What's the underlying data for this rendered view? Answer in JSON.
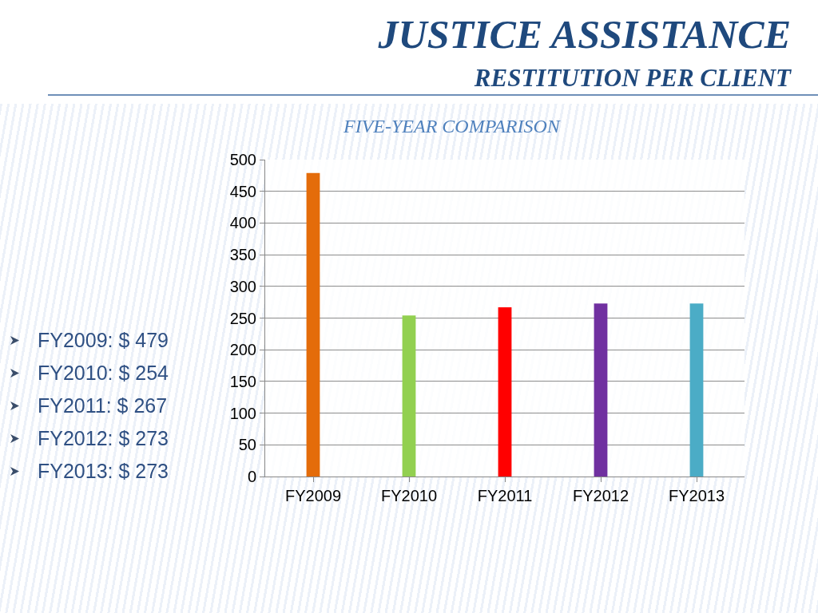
{
  "chart_data": {
    "type": "bar",
    "title": "JUSTICE ASSISTANCE",
    "subtitle": "RESTITUTION PER CLIENT",
    "annotations": [
      "FIVE-YEAR COMPARISON",
      "FY2009: $ 479",
      "FY2010: $ 254",
      "FY2011: $ 267",
      "FY2012: $ 273",
      "FY2013: $ 273"
    ],
    "categories": [
      "FY2009",
      "FY2010",
      "FY2011",
      "FY2012",
      "FY2013"
    ],
    "values": [
      479,
      254,
      267,
      273,
      273
    ],
    "colors": [
      "#e46c0a",
      "#92d050",
      "#ff0000",
      "#7030a0",
      "#4bacc6"
    ],
    "ylim": [
      0,
      500
    ],
    "yticks": [
      0,
      50,
      100,
      150,
      200,
      250,
      300,
      350,
      400,
      450,
      500
    ],
    "grid": "y"
  }
}
